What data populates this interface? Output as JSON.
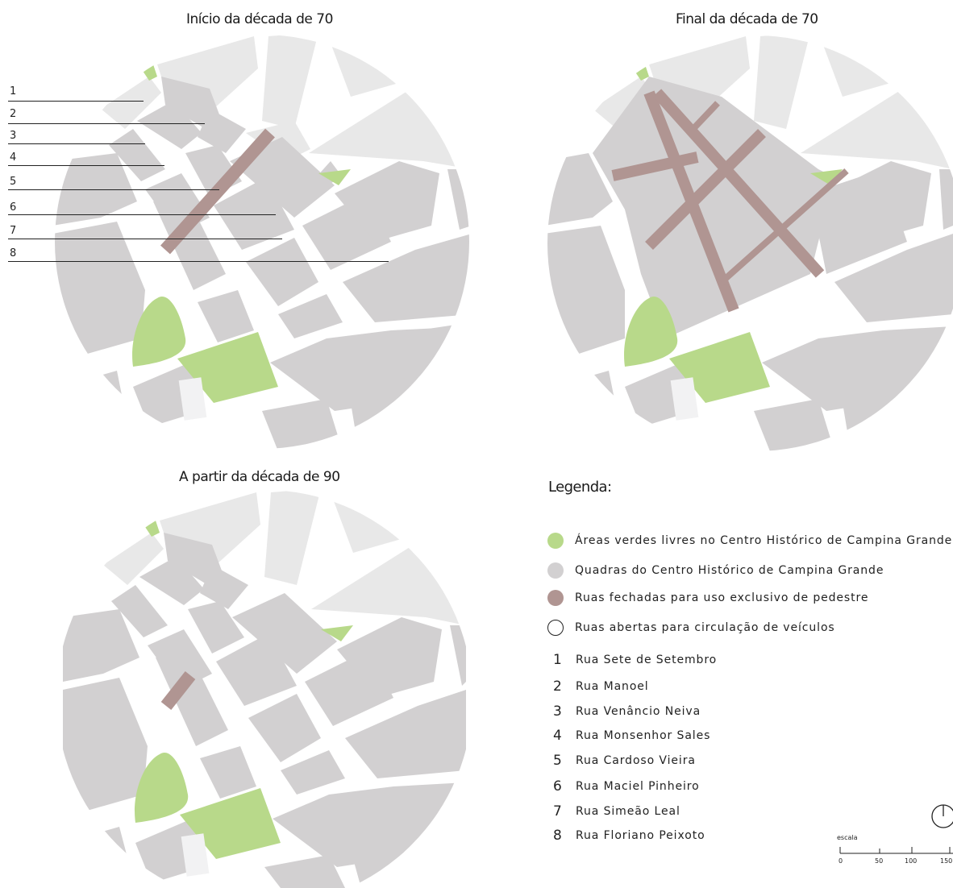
{
  "maps": [
    {
      "title": "Início da década de 70"
    },
    {
      "title": "Final da década de 70"
    },
    {
      "title": "A partir da década de 90"
    }
  ],
  "reference_numbers": [
    "1",
    "2",
    "3",
    "4",
    "5",
    "6",
    "7",
    "8"
  ],
  "legend": {
    "title": "Legenda:",
    "items": [
      {
        "label": "Áreas verdes livres no Centro Histórico de Campina Grande",
        "color": "#b8d98a"
      },
      {
        "label": "Quadras do Centro Histórico de Campina Grande",
        "color": "#d2d0d1"
      },
      {
        "label": "Ruas fechadas para uso exclusivo de pedestre",
        "color": "#b09592"
      },
      {
        "label": "Ruas abertas para circulação de veículos",
        "color": "#ffffff"
      }
    ],
    "streets": [
      {
        "num": "1",
        "name": "Rua Sete de Setembro"
      },
      {
        "num": "2",
        "name": "Rua Manoel"
      },
      {
        "num": "3",
        "name": "Rua Venâncio Neiva"
      },
      {
        "num": "4",
        "name": "Rua Monsenhor Sales"
      },
      {
        "num": "5",
        "name": "Rua Cardoso Vieira"
      },
      {
        "num": "6",
        "name": "Rua Maciel Pinheiro"
      },
      {
        "num": "7",
        "name": "Rua Simeão Leal"
      },
      {
        "num": "8",
        "name": "Rua Floriano Peixoto"
      }
    ]
  },
  "scale": {
    "label": "escala",
    "ticks": [
      "0",
      "50",
      "100",
      "150"
    ]
  },
  "colors": {
    "block": "#d2d0d1",
    "outer_block": "#e8e8e8",
    "green": "#b8d98a",
    "pedestrian": "#b09592",
    "street": "#ffffff",
    "building": "#f2f2f3"
  }
}
